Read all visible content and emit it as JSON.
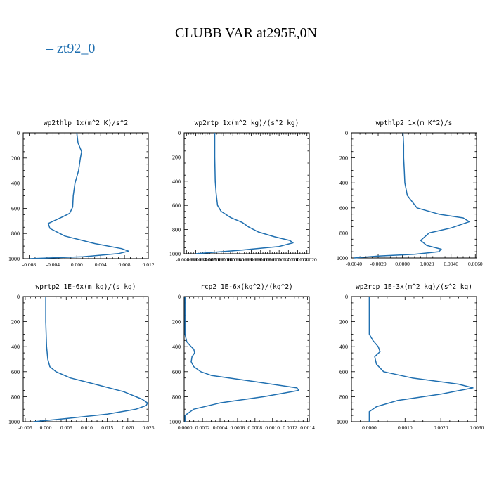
{
  "page": {
    "title": "CLUBB VAR at295E,0N",
    "legend_label": "zt92_0",
    "line_color": "#1f6fb0"
  },
  "chart_data": [
    {
      "type": "line",
      "title": "wp2thlp  1x(m^2 K)/s^2",
      "xlim": [
        -0.009,
        0.012
      ],
      "ylim": [
        1000,
        0
      ],
      "xticks": [
        -0.008,
        -0.004,
        0.0,
        0.004,
        0.008,
        0.012
      ],
      "xticklabels": [
        "-0.008",
        "-0.004",
        "0.000",
        "0.004",
        "0.008",
        "0.012"
      ],
      "yticks": [
        0,
        200,
        400,
        600,
        800,
        1000
      ],
      "yticklabels": [
        "0",
        "200",
        "400",
        "600",
        "800",
        "1000"
      ],
      "series": [
        {
          "x": [
            0.0,
            0.0002,
            0.0008,
            0.0006,
            0.0003,
            -0.0003,
            -0.0006,
            -0.0007,
            -0.0012,
            -0.0025,
            -0.0048,
            -0.0045,
            -0.002,
            0.003,
            0.0075,
            0.0087,
            0.007,
            0.001,
            -0.008
          ],
          "y": [
            0,
            80,
            150,
            200,
            300,
            400,
            500,
            590,
            640,
            670,
            720,
            760,
            820,
            880,
            920,
            940,
            960,
            985,
            1000
          ]
        }
      ]
    },
    {
      "type": "line",
      "title": "wp2rtp  1x(m^2 kg)/(s^2 kg)",
      "xlim": [
        -6.5e-06,
        2.05e-05
      ],
      "ylim": [
        1000,
        0
      ],
      "xticks": [
        -6e-06,
        -4e-06,
        -2e-06,
        0.0,
        2e-06,
        4e-06,
        6e-06,
        8e-06,
        1e-05,
        1.2e-05,
        1.4e-05,
        1.6e-05,
        1.8e-05,
        2e-05
      ],
      "xticklabels": [
        "-0.000006",
        "-0.000004",
        "-0.000002",
        "0.000000",
        "0.000002",
        "0.000004",
        "0.000006",
        "0.000008",
        "0.000010",
        "0.000012",
        "0.000014",
        "0.000016",
        "0.000018",
        "0.000020"
      ],
      "yticks": [
        0,
        200,
        400,
        600,
        800,
        1000
      ],
      "yticklabels": [
        "0",
        "200",
        "400",
        "600",
        "800",
        "1000"
      ],
      "series": [
        {
          "x": [
            1e-07,
            1e-07,
            2e-07,
            4e-07,
            7e-07,
            1.5e-06,
            3.5e-06,
            6e-06,
            7.5e-06,
            9.5e-06,
            1.3e-05,
            1.63e-05,
            1.7e-05,
            1.4e-05,
            6e-06,
            -4e-06
          ],
          "y": [
            0,
            200,
            400,
            500,
            600,
            650,
            700,
            740,
            780,
            820,
            860,
            890,
            910,
            940,
            970,
            1000
          ]
        }
      ]
    },
    {
      "type": "line",
      "title": "wpthlp2  1x(m K^2)/s",
      "xlim": [
        -0.0042,
        0.0061
      ],
      "ylim": [
        1000,
        0
      ],
      "xticks": [
        -0.004,
        -0.002,
        0.0,
        0.002,
        0.004,
        0.006
      ],
      "xticklabels": [
        "-0.0040",
        "-0.0020",
        "0.0000",
        "0.0020",
        "0.0040",
        "0.0060"
      ],
      "yticks": [
        0,
        200,
        400,
        600,
        800,
        1000
      ],
      "yticklabels": [
        "0",
        "200",
        "400",
        "600",
        "800",
        "1000"
      ],
      "series": [
        {
          "x": [
            5e-05,
            0.0001,
            0.0001,
            0.00015,
            0.0002,
            0.0004,
            0.0012,
            0.003,
            0.005,
            0.0055,
            0.004,
            0.0022,
            0.0015,
            0.002,
            0.0032,
            0.003,
            0.001,
            -0.002,
            -0.004
          ],
          "y": [
            0,
            100,
            200,
            300,
            400,
            500,
            600,
            650,
            680,
            710,
            760,
            800,
            860,
            900,
            930,
            950,
            970,
            985,
            1000
          ]
        }
      ]
    },
    {
      "type": "line",
      "title": "wprtp2  1E-6x(m kg)/(s kg)",
      "xlim": [
        -0.0055,
        0.025
      ],
      "ylim": [
        1000,
        0
      ],
      "xticks": [
        -0.005,
        0.0,
        0.005,
        0.01,
        0.015,
        0.02,
        0.025
      ],
      "xticklabels": [
        "-0.005",
        "0.000",
        "0.005",
        "0.010",
        "0.015",
        "0.020",
        "0.025"
      ],
      "yticks": [
        0,
        200,
        400,
        600,
        800,
        1000
      ],
      "yticklabels": [
        "0",
        "200",
        "400",
        "600",
        "800",
        "1000"
      ],
      "series": [
        {
          "x": [
            0.0,
            0.0,
            0.0002,
            0.0005,
            0.001,
            0.0025,
            0.006,
            0.012,
            0.019,
            0.0235,
            0.0248,
            0.0245,
            0.022,
            0.015,
            0.005,
            -0.003
          ],
          "y": [
            0,
            200,
            400,
            500,
            560,
            600,
            650,
            700,
            760,
            820,
            850,
            870,
            900,
            940,
            975,
            1000
          ]
        }
      ]
    },
    {
      "type": "line",
      "title": "rcp2  1E-6x(kg^2)/(kg^2)",
      "xlim": [
        -1e-05,
        0.00142
      ],
      "ylim": [
        1000,
        0
      ],
      "xticks": [
        0.0,
        0.0002,
        0.0004,
        0.0006,
        0.0008,
        0.001,
        0.0012,
        0.0014
      ],
      "xticklabels": [
        "0.0000",
        "0.0002",
        "0.0004",
        "0.0006",
        "0.0008",
        "0.0010",
        "0.0012",
        "0.0014"
      ],
      "yticks": [
        0,
        200,
        400,
        600,
        800,
        1000
      ],
      "yticklabels": [
        "0",
        "200",
        "400",
        "600",
        "800",
        "1000"
      ],
      "series": [
        {
          "x": [
            0.0,
            0.0,
            2e-05,
            7e-05,
            0.0001,
            0.00011,
            8e-05,
            7e-05,
            0.0001,
            0.00018,
            0.0003,
            0.0008,
            0.00128,
            0.0013,
            0.0009,
            0.0004,
            0.0001,
            0.0,
            0.0
          ],
          "y": [
            0,
            300,
            360,
            400,
            420,
            450,
            480,
            520,
            560,
            600,
            630,
            680,
            730,
            750,
            800,
            850,
            900,
            950,
            1000
          ]
        }
      ]
    },
    {
      "type": "line",
      "title": "wp2rcp  1E-3x(m^2 kg)/(s^2 kg)",
      "xlim": [
        -0.0005,
        0.003
      ],
      "ylim": [
        1000,
        0
      ],
      "xticks": [
        0.0,
        0.001,
        0.002,
        0.003
      ],
      "xticklabels": [
        "0.0000",
        "0.0010",
        "0.0020",
        "0.0030"
      ],
      "yticks": [
        0,
        200,
        400,
        600,
        800,
        1000
      ],
      "yticklabels": [
        "0",
        "200",
        "400",
        "600",
        "800",
        "1000"
      ],
      "series": [
        {
          "x": [
            0.0,
            0.0,
            0.0001,
            0.00025,
            0.0003,
            0.00015,
            0.0002,
            0.0004,
            0.0012,
            0.0025,
            0.0029,
            0.002,
            0.0008,
            0.0002,
            0.0,
            0.0
          ],
          "y": [
            0,
            300,
            350,
            400,
            440,
            480,
            540,
            600,
            650,
            700,
            730,
            780,
            830,
            880,
            920,
            1000
          ]
        }
      ]
    }
  ]
}
